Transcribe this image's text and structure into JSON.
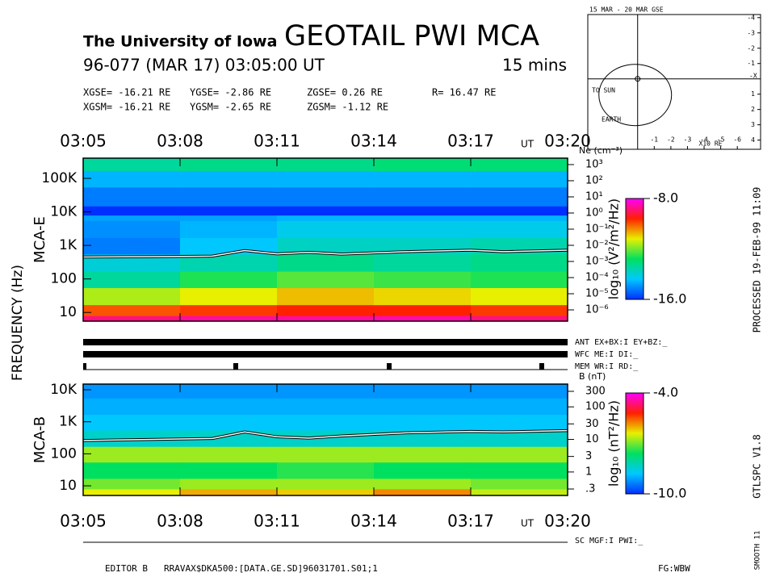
{
  "header": {
    "institution": "The University of Iowa",
    "title": "GEOTAIL PWI MCA",
    "date": "96-077 (MAR 17) 03:05:00 UT",
    "duration": "15 mins",
    "coords": [
      [
        "XGSE= -16.21 RE",
        "YGSE= -2.86 RE",
        "ZGSE= 0.26 RE",
        "R= 16.47 RE"
      ],
      [
        "XGSM= -16.21 RE",
        "YGSM= -2.65 RE",
        "ZGSM= -1.12 RE"
      ]
    ]
  },
  "axis_label": "FREQUENCY (Hz)",
  "status": [
    "ANT EX+BX:I EY+BZ:_",
    "WFC ME:I DI:_",
    "MEM WR:I RD:_",
    "SC MGF:I PWI:_"
  ],
  "footer": [
    "EDITOR B",
    "RRAVAX$DKA500:[DATA.GE.SD]96031701.S01;1",
    "FG:WBW"
  ],
  "side": [
    "PROCESSED 19-FEB-99 11:09",
    "GTLSPC V1.8",
    "SMOOTH 11"
  ],
  "chart_data": [
    {
      "type": "spectrogram",
      "label": "MCA-E",
      "x_unit": "UT",
      "xlim": [
        185,
        200
      ],
      "xticks": [
        {
          "value": 185,
          "label": "03:05"
        },
        {
          "value": 188,
          "label": "03:08"
        },
        {
          "value": 191,
          "label": "03:11"
        },
        {
          "value": 194,
          "label": "03:14"
        },
        {
          "value": 197,
          "label": "03:17"
        },
        {
          "value": 200,
          "label": "03:20"
        }
      ],
      "log_scale": true,
      "ylim": [
        5.5,
        400000
      ],
      "yticks": [
        10,
        100,
        {
          "value": 1000,
          "label": "1K"
        },
        {
          "value": 10000,
          "label": "10K"
        },
        {
          "value": 100000,
          "label": "100K"
        }
      ],
      "y2_label": "Ne (cm⁻³)",
      "y2lim": [
        2e-07,
        2500
      ],
      "y2ticks": [
        {
          "value": 1000,
          "label": "10³"
        },
        {
          "value": 100,
          "label": "10²"
        },
        {
          "value": 10,
          "label": "10¹"
        },
        {
          "value": 1,
          "label": "10⁰"
        },
        {
          "value": 0.1,
          "label": "10⁻¹"
        },
        {
          "value": 0.01,
          "label": "10⁻²"
        },
        {
          "value": 0.001,
          "label": "10⁻³"
        },
        {
          "value": 0.0001,
          "label": "10⁻⁴"
        },
        {
          "value": 1e-05,
          "label": "10⁻⁵"
        },
        {
          "value": 1e-06,
          "label": "10⁻⁶"
        }
      ],
      "x": [
        185,
        188,
        191,
        194,
        197,
        200
      ],
      "ybins": [
        5.5,
        8,
        17,
        55,
        170,
        550,
        1700,
        5500,
        8000,
        15000,
        55000,
        170000,
        400000
      ],
      "z": [
        [
          -8.8,
          -8.6,
          -8.6,
          -8.5,
          -8.8
        ],
        [
          -10,
          -9.8,
          -9.6,
          -9.6,
          -9.8
        ],
        [
          -11.6,
          -11.2,
          -10.8,
          -11,
          -11.2
        ],
        [
          -13.4,
          -12.6,
          -12.2,
          -12.4,
          -12.6
        ],
        [
          -14,
          -13.6,
          -13.2,
          -13.4,
          -13.2
        ],
        [
          -15.2,
          -14.4,
          -13.8,
          -13.8,
          -13.6
        ],
        [
          -15,
          -14.6,
          -14.2,
          -14.2,
          -14.2
        ],
        [
          -14.8,
          -14.8,
          -14.6,
          -14.6,
          -14.6
        ],
        [
          -16,
          -16,
          -16,
          -16,
          -16
        ],
        [
          -15.2,
          -15.2,
          -15.2,
          -15.2,
          -15.2
        ],
        [
          -14.6,
          -14.6,
          -14.6,
          -14.6,
          -14.6
        ],
        [
          -13.4,
          -13.2,
          -13.2,
          -13,
          -13
        ]
      ],
      "zlim": [
        -16,
        -8
      ],
      "zticks": [
        {
          "value": -8,
          "label": "-8.0"
        },
        {
          "value": -16,
          "label": "-16.0"
        }
      ],
      "colorbar_label": "log₁₀ (V²/m²/Hz)",
      "colormap": [
        "#0030ff",
        "#00c8ff",
        "#00e060",
        "#e8f000",
        "#ff2000",
        "#ff00ff"
      ],
      "trace": {
        "x": [
          185,
          187,
          189,
          190,
          191,
          192,
          193,
          195,
          197,
          198,
          200
        ],
        "values": [
          450,
          460,
          480,
          700,
          560,
          620,
          550,
          650,
          720,
          650,
          720
        ],
        "color": "#ffffff"
      }
    },
    {
      "type": "spectrogram",
      "label": "MCA-B",
      "x_unit": "UT",
      "xlim": [
        185,
        200
      ],
      "xticks": [
        {
          "value": 185,
          "label": "03:05"
        },
        {
          "value": 188,
          "label": "03:08"
        },
        {
          "value": 191,
          "label": "03:11"
        },
        {
          "value": 194,
          "label": "03:14"
        },
        {
          "value": 197,
          "label": "03:17"
        },
        {
          "value": 200,
          "label": "03:20"
        }
      ],
      "log_scale": true,
      "ylim": [
        5,
        15000
      ],
      "yticks": [
        10,
        100,
        {
          "value": 1000,
          "label": "1K"
        },
        {
          "value": 10000,
          "label": "10K"
        }
      ],
      "y2_label": "B (nT)",
      "y2lim": [
        0.19,
        500
      ],
      "y2ticks": [
        300,
        100,
        30,
        10,
        3,
        1,
        {
          "value": 0.3,
          "label": ".3"
        }
      ],
      "x": [
        185,
        188,
        191,
        194,
        197,
        200
      ],
      "ybins": [
        5,
        8,
        17,
        55,
        170,
        550,
        1700,
        5500,
        15000
      ],
      "z": [
        [
          -6.4,
          -6,
          -6.2,
          -5.8,
          -6.6
        ],
        [
          -7,
          -6.8,
          -6.8,
          -6.8,
          -7
        ],
        [
          -7.6,
          -7.6,
          -7.4,
          -7.6,
          -7.6
        ],
        [
          -6.8,
          -6.8,
          -6.8,
          -6.8,
          -6.8
        ],
        [
          -8.4,
          -8.4,
          -8.4,
          -8.4,
          -8.4
        ],
        [
          -8.8,
          -8.8,
          -8.8,
          -8.8,
          -8.8
        ],
        [
          -9,
          -9,
          -9,
          -9,
          -9
        ],
        [
          -9.2,
          -9.2,
          -9.2,
          -9.2,
          -9.2
        ]
      ],
      "zlim": [
        -10,
        -4
      ],
      "zticks": [
        {
          "value": -4,
          "label": "-4.0"
        },
        {
          "value": -10,
          "label": "-10.0"
        }
      ],
      "colorbar_label": "log₁₀ (nT²/Hz)",
      "colormap": [
        "#0030ff",
        "#00c8ff",
        "#00e060",
        "#e8f000",
        "#ff2000",
        "#ff00ff"
      ],
      "trace": {
        "x": [
          185,
          187,
          189,
          190,
          191,
          192,
          193,
          195,
          197,
          198,
          200
        ],
        "values": [
          260,
          280,
          300,
          480,
          340,
          310,
          360,
          450,
          500,
          480,
          530
        ],
        "color": "#ffffff"
      }
    },
    {
      "type": "orbit",
      "title": "15 MAR - 20 MAR GSE",
      "x_label": "X10 RE",
      "labels": [
        "TO SUN",
        "EARTH",
        "-X"
      ],
      "xlim": [
        3,
        -7.4
      ],
      "xticks": [
        -1,
        -2,
        -3,
        -4,
        -5,
        -6
      ],
      "ylim": [
        -4.2,
        4.6
      ],
      "yticks": [
        -4,
        -3,
        -2,
        -1,
        1,
        2,
        3,
        4
      ]
    }
  ]
}
